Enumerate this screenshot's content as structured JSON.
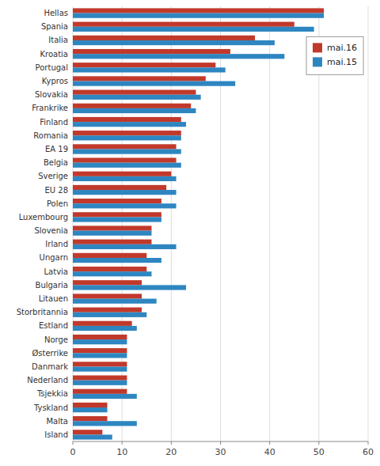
{
  "chart_data": {
    "type": "bar",
    "orientation": "horizontal",
    "categories": [
      "Hellas",
      "Spania",
      "Italia",
      "Kroatia",
      "Portugal",
      "Kypros",
      "Slovakia",
      "Frankrike",
      "Finland",
      "Romania",
      "EA 19",
      "Belgia",
      "Sverige",
      "EU 28",
      "Polen",
      "Luxembourg",
      "Slovenia",
      "Irland",
      "Ungarn",
      "Latvia",
      "Bulgaria",
      "Litauen",
      "Storbritannia",
      "Estland",
      "Norge",
      "Østerrike",
      "Danmark",
      "Nederland",
      "Tsjekkia",
      "Tyskland",
      "Malta",
      "Island"
    ],
    "series": [
      {
        "name": "mai.16",
        "color": "#C1392B",
        "values": [
          51,
          45,
          37,
          32,
          29,
          27,
          25,
          24,
          22,
          22,
          21,
          21,
          20,
          19,
          18,
          18,
          16,
          16,
          15,
          15,
          14,
          14,
          14,
          12,
          11,
          11,
          11,
          11,
          11,
          7,
          7,
          6
        ]
      },
      {
        "name": "mai.15",
        "color": "#2E86C1",
        "values": [
          51,
          49,
          41,
          43,
          31,
          33,
          26,
          25,
          23,
          22,
          22,
          22,
          21,
          21,
          21,
          18,
          16,
          21,
          18,
          16,
          23,
          17,
          15,
          13,
          11,
          11,
          11,
          11,
          13,
          7,
          13,
          8
        ]
      }
    ],
    "xlim": [
      0,
      60
    ],
    "xticks": [
      0,
      10,
      20,
      30,
      40,
      50,
      60
    ],
    "grid": true,
    "legend": "upper right"
  }
}
